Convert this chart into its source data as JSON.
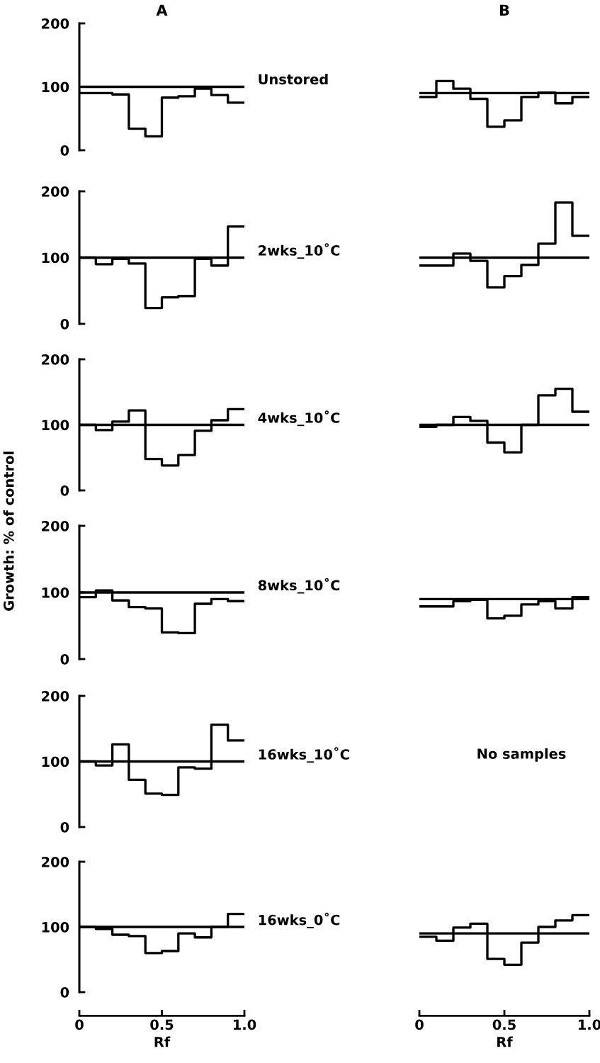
{
  "chart_data": [
    {
      "type": "histogram",
      "title": "A",
      "annotations": [
        "Unstored"
      ],
      "color": "#000000",
      "bins": [
        0,
        0.1,
        0.2,
        0.3,
        0.4,
        0.5,
        0.6,
        0.7,
        0.8,
        0.9,
        1.0
      ],
      "values": [
        90,
        90,
        88,
        34,
        22,
        83,
        85,
        97,
        87,
        75
      ],
      "ref_lines": [
        {
          "axis": "y",
          "value": 100
        }
      ],
      "xlim": [
        0,
        1.0
      ],
      "ylim": [
        0,
        200
      ],
      "yticks": [
        0,
        100,
        200
      ],
      "tick_labels": "y"
    },
    {
      "type": "histogram",
      "title": "B",
      "color": "#000000",
      "bins": [
        0,
        0.1,
        0.2,
        0.3,
        0.4,
        0.5,
        0.6,
        0.7,
        0.8,
        0.9,
        1.0
      ],
      "values": [
        84,
        109,
        97,
        81,
        37,
        47,
        84,
        91,
        74,
        84
      ],
      "ref_lines": [
        {
          "axis": "y",
          "value": 90
        }
      ],
      "xlim": [
        0,
        1.0
      ],
      "ylim": [
        0,
        200
      ],
      "tick_labels": false
    },
    {
      "type": "histogram",
      "annotations": [
        "2wks_10˚C"
      ],
      "color": "#000000",
      "bins": [
        0,
        0.1,
        0.2,
        0.3,
        0.4,
        0.5,
        0.6,
        0.7,
        0.8,
        0.9,
        1.0
      ],
      "values": [
        100,
        90,
        98,
        91,
        24,
        40,
        42,
        98,
        88,
        147
      ],
      "ref_lines": [
        {
          "axis": "y",
          "value": 100
        }
      ],
      "xlim": [
        0,
        1.0
      ],
      "ylim": [
        0,
        200
      ],
      "yticks": [
        0,
        100,
        200
      ],
      "tick_labels": "y"
    },
    {
      "type": "histogram",
      "color": "#000000",
      "bins": [
        0,
        0.1,
        0.2,
        0.3,
        0.4,
        0.5,
        0.6,
        0.7,
        0.8,
        0.9,
        1.0
      ],
      "values": [
        88,
        88,
        106,
        95,
        55,
        72,
        89,
        121,
        183,
        133
      ],
      "ref_lines": [
        {
          "axis": "y",
          "value": 100
        }
      ],
      "xlim": [
        0,
        1.0
      ],
      "ylim": [
        0,
        200
      ],
      "tick_labels": false
    },
    {
      "type": "histogram",
      "annotations": [
        "4wks_10˚C"
      ],
      "ylabel": "Growth: % of control",
      "color": "#000000",
      "bins": [
        0,
        0.1,
        0.2,
        0.3,
        0.4,
        0.5,
        0.6,
        0.7,
        0.8,
        0.9,
        1.0
      ],
      "values": [
        100,
        92,
        105,
        122,
        48,
        38,
        54,
        91,
        107,
        124
      ],
      "ref_lines": [
        {
          "axis": "y",
          "value": 100
        }
      ],
      "xlim": [
        0,
        1.0
      ],
      "ylim": [
        0,
        200
      ],
      "yticks": [
        0,
        100,
        200
      ],
      "tick_labels": "y"
    },
    {
      "type": "histogram",
      "color": "#000000",
      "bins": [
        0,
        0.1,
        0.2,
        0.3,
        0.4,
        0.5,
        0.6,
        0.7,
        0.8,
        0.9,
        1.0
      ],
      "values": [
        97,
        100,
        112,
        106,
        73,
        58,
        100,
        145,
        155,
        120
      ],
      "ref_lines": [
        {
          "axis": "y",
          "value": 100
        }
      ],
      "xlim": [
        0,
        1.0
      ],
      "ylim": [
        0,
        200
      ],
      "tick_labels": false
    },
    {
      "type": "histogram",
      "annotations": [
        "8wks_10˚C"
      ],
      "color": "#000000",
      "bins": [
        0,
        0.1,
        0.2,
        0.3,
        0.4,
        0.5,
        0.6,
        0.7,
        0.8,
        0.9,
        1.0
      ],
      "values": [
        93,
        103,
        88,
        78,
        76,
        40,
        39,
        83,
        90,
        87
      ],
      "ref_lines": [
        {
          "axis": "y",
          "value": 100
        }
      ],
      "xlim": [
        0,
        1.0
      ],
      "ylim": [
        0,
        200
      ],
      "yticks": [
        0,
        100,
        200
      ],
      "tick_labels": "y"
    },
    {
      "type": "histogram",
      "color": "#000000",
      "bins": [
        0,
        0.1,
        0.2,
        0.3,
        0.4,
        0.5,
        0.6,
        0.7,
        0.8,
        0.9,
        1.0
      ],
      "values": [
        79,
        79,
        87,
        89,
        61,
        65,
        82,
        87,
        76,
        93
      ],
      "ref_lines": [
        {
          "axis": "y",
          "value": 90
        }
      ],
      "xlim": [
        0,
        1.0
      ],
      "ylim": [
        0,
        200
      ],
      "tick_labels": false
    },
    {
      "type": "histogram",
      "annotations": [
        "16wks_10˚C"
      ],
      "color": "#000000",
      "bins": [
        0,
        0.1,
        0.2,
        0.3,
        0.4,
        0.5,
        0.6,
        0.7,
        0.8,
        0.9,
        1.0
      ],
      "values": [
        100,
        94,
        126,
        72,
        51,
        49,
        91,
        89,
        156,
        132
      ],
      "ref_lines": [
        {
          "axis": "y",
          "value": 100
        }
      ],
      "xlim": [
        0,
        1.0
      ],
      "ylim": [
        0,
        200
      ],
      "yticks": [
        0,
        100,
        200
      ],
      "tick_labels": "y"
    },
    {
      "type": "other",
      "annotations": [
        "No samples"
      ]
    },
    {
      "type": "histogram",
      "annotations": [
        "16wks_0˚C"
      ],
      "xlabel": "Rf",
      "color": "#000000",
      "bins": [
        0,
        0.1,
        0.2,
        0.3,
        0.4,
        0.5,
        0.6,
        0.7,
        0.8,
        0.9,
        1.0
      ],
      "values": [
        100,
        97,
        88,
        86,
        60,
        63,
        90,
        84,
        100,
        120
      ],
      "ref_lines": [
        {
          "axis": "y",
          "value": 100
        }
      ],
      "xlim": [
        0,
        1.0
      ],
      "xticks": [
        0,
        0.5,
        {
          "value": 1.0,
          "label": "1.0"
        }
      ],
      "ylim": [
        0,
        200
      ],
      "yticks": [
        0,
        100,
        200
      ]
    },
    {
      "type": "histogram",
      "xlabel": "Rf",
      "color": "#000000",
      "bins": [
        0,
        0.1,
        0.2,
        0.3,
        0.4,
        0.5,
        0.6,
        0.7,
        0.8,
        0.9,
        1.0
      ],
      "values": [
        85,
        79,
        99,
        105,
        51,
        42,
        76,
        100,
        110,
        118
      ],
      "ref_lines": [
        {
          "axis": "y",
          "value": 90
        }
      ],
      "xlim": [
        0,
        1.0
      ],
      "xticks": [
        0,
        0.5,
        {
          "value": 1.0,
          "label": "1.0"
        }
      ],
      "ylim": [
        0,
        200
      ],
      "tick_labels": "x"
    }
  ]
}
